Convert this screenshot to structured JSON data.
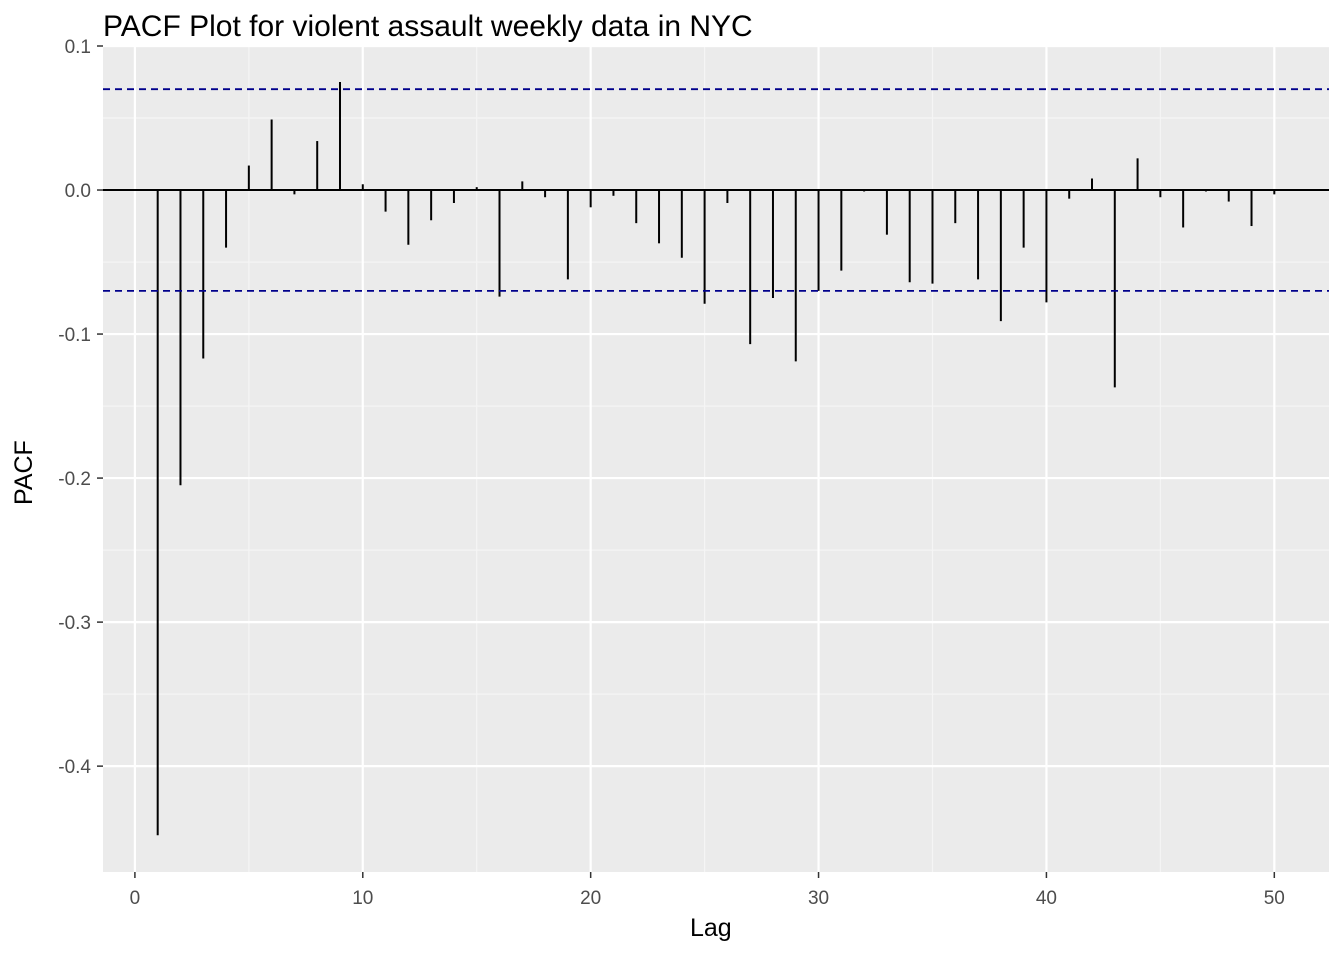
{
  "chart_data": {
    "type": "bar",
    "title": "PACF Plot for violent assault weekly data in NYC",
    "xlabel": "Lag",
    "ylabel": "PACF",
    "xlim": [
      0,
      52
    ],
    "ylim": [
      -0.46,
      0.1
    ],
    "x_ticks": [
      "0",
      "10",
      "20",
      "30",
      "40",
      "50"
    ],
    "y_ticks": [
      "0.1",
      "0.0",
      "-0.1",
      "-0.2",
      "-0.3",
      "-0.4"
    ],
    "confidence_band": [
      0.07,
      -0.07
    ],
    "x": [
      1,
      2,
      3,
      4,
      5,
      6,
      7,
      8,
      9,
      10,
      11,
      12,
      13,
      14,
      15,
      16,
      17,
      18,
      19,
      20,
      21,
      22,
      23,
      24,
      25,
      26,
      27,
      28,
      29,
      30,
      31,
      32,
      33,
      34,
      35,
      36,
      37,
      38,
      39,
      40,
      41,
      42,
      43,
      44,
      45,
      46,
      47,
      48,
      49,
      50
    ],
    "values": [
      -0.448,
      -0.205,
      -0.117,
      -0.04,
      0.017,
      0.049,
      -0.003,
      0.034,
      0.075,
      0.004,
      -0.015,
      -0.038,
      -0.021,
      -0.009,
      0.002,
      -0.074,
      0.006,
      -0.005,
      -0.062,
      -0.012,
      -0.004,
      -0.023,
      -0.037,
      -0.047,
      -0.079,
      -0.009,
      -0.107,
      -0.075,
      -0.119,
      -0.07,
      -0.056,
      -0.001,
      -0.031,
      -0.064,
      -0.065,
      -0.023,
      -0.062,
      -0.091,
      -0.04,
      -0.078,
      -0.006,
      0.008,
      -0.137,
      0.022,
      -0.005,
      -0.026,
      -0.001,
      -0.008,
      -0.025,
      -0.003
    ],
    "grid": true,
    "colors": {
      "panel_bg": "#ebebeb",
      "grid_major": "#ffffff",
      "grid_minor": "#f5f5f5",
      "bar": "#000000",
      "conf_line": "#00008b",
      "zero_line": "#000000",
      "tick_text": "#4d4d4d"
    }
  }
}
